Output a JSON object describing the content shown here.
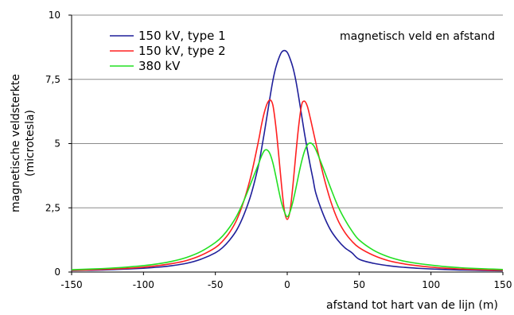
{
  "chart_data": {
    "type": "line",
    "title": "",
    "annotation": "magnetisch veld en afstand",
    "xlabel": "afstand tot hart van de lijn (m)",
    "ylabel": [
      "magnetische veldsterkte",
      "(microtesla)"
    ],
    "xlim": [
      -150,
      150
    ],
    "ylim": [
      0,
      10
    ],
    "x_ticks": [
      -150,
      -100,
      -50,
      0,
      50,
      100,
      150
    ],
    "x_tick_labels": [
      "-150",
      "-100",
      "-50",
      "0",
      "50",
      "100",
      "150"
    ],
    "y_ticks": [
      0,
      2.5,
      5,
      7.5,
      10
    ],
    "y_tick_labels": [
      "0",
      "2,5",
      "5",
      "7,5",
      "10"
    ],
    "grid": "horizontal",
    "legend_position": "top-left",
    "x": [
      -150,
      -140,
      -130,
      -120,
      -110,
      -100,
      -90,
      -80,
      -70,
      -60,
      -50,
      -45,
      -40,
      -35,
      -30,
      -25,
      -20,
      -18,
      -16,
      -14,
      -12,
      -10,
      -8,
      -6,
      -4,
      -2,
      0,
      2,
      4,
      6,
      8,
      10,
      12,
      14,
      16,
      18,
      20,
      25,
      30,
      35,
      40,
      45,
      50,
      60,
      70,
      80,
      90,
      100,
      110,
      120,
      130,
      140,
      150
    ],
    "series": [
      {
        "name": "150 kV, type 1",
        "color": "#1f1f9a",
        "values": [
          0.06,
          0.07,
          0.08,
          0.1,
          0.12,
          0.15,
          0.19,
          0.25,
          0.34,
          0.5,
          0.75,
          0.95,
          1.25,
          1.65,
          2.25,
          3.05,
          4.15,
          4.75,
          5.4,
          6.1,
          6.8,
          7.45,
          7.95,
          8.3,
          8.55,
          8.62,
          8.55,
          8.3,
          7.95,
          7.45,
          6.8,
          6.1,
          5.4,
          4.75,
          4.15,
          3.6,
          3.05,
          2.25,
          1.65,
          1.25,
          0.95,
          0.75,
          0.5,
          0.34,
          0.25,
          0.19,
          0.15,
          0.12,
          0.1,
          0.08,
          0.07,
          0.06,
          0.05
        ]
      },
      {
        "name": "150 kV, type 2",
        "color": "#ff2020",
        "values": [
          0.07,
          0.08,
          0.1,
          0.12,
          0.15,
          0.19,
          0.25,
          0.33,
          0.45,
          0.65,
          0.95,
          1.2,
          1.55,
          2.05,
          2.8,
          3.8,
          5.1,
          5.7,
          6.2,
          6.55,
          6.7,
          6.5,
          5.7,
          4.6,
          3.4,
          2.4,
          2.05,
          2.4,
          3.4,
          4.6,
          5.7,
          6.5,
          6.65,
          6.45,
          6.0,
          5.5,
          5.0,
          3.8,
          2.8,
          2.05,
          1.55,
          1.2,
          0.95,
          0.65,
          0.45,
          0.33,
          0.25,
          0.19,
          0.15,
          0.12,
          0.1,
          0.08,
          0.07
        ]
      },
      {
        "name": "380 kV",
        "color": "#22e022",
        "values": [
          0.09,
          0.11,
          0.13,
          0.16,
          0.2,
          0.25,
          0.32,
          0.42,
          0.57,
          0.8,
          1.15,
          1.4,
          1.75,
          2.2,
          2.8,
          3.5,
          4.2,
          4.5,
          4.72,
          4.75,
          4.6,
          4.25,
          3.75,
          3.2,
          2.7,
          2.35,
          2.15,
          2.35,
          2.75,
          3.25,
          3.8,
          4.3,
          4.7,
          4.95,
          5.02,
          4.95,
          4.75,
          4.05,
          3.3,
          2.6,
          2.05,
          1.6,
          1.25,
          0.85,
          0.6,
          0.44,
          0.34,
          0.27,
          0.21,
          0.17,
          0.14,
          0.12,
          0.1
        ]
      }
    ]
  }
}
